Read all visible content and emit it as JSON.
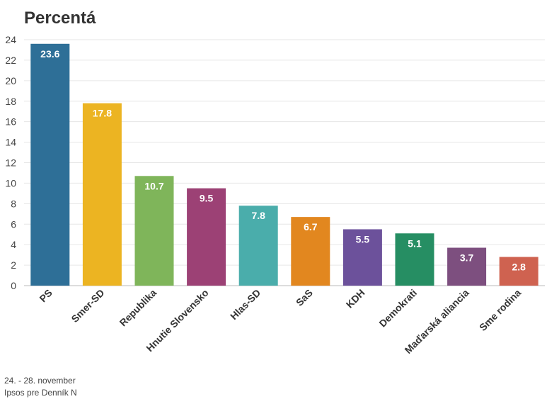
{
  "chart_data": {
    "type": "bar",
    "title": "Percentá",
    "xlabel": "",
    "ylabel": "",
    "ylim": [
      0,
      24
    ],
    "yticks": [
      0,
      2,
      4,
      6,
      8,
      10,
      12,
      14,
      16,
      18,
      20,
      22,
      24
    ],
    "grid": true,
    "categories": [
      "PS",
      "Smer-SD",
      "Republika",
      "Hnutie Slovensko",
      "Hlas-SD",
      "SaS",
      "KDH",
      "Demokrati",
      "Maďarská aliancia",
      "Sme rodina"
    ],
    "values": [
      23.6,
      17.8,
      10.7,
      9.5,
      7.8,
      6.7,
      5.5,
      5.1,
      3.7,
      2.8
    ],
    "colors": [
      "#2e6f97",
      "#ecb422",
      "#7fb55a",
      "#9c4175",
      "#4aadab",
      "#e2871f",
      "#6c519b",
      "#268e63",
      "#7d4f7f",
      "#cf6250"
    ],
    "data_labels": [
      "23.6",
      "17.8",
      "10.7",
      "9.5",
      "7.8",
      "6.7",
      "5.5",
      "5.1",
      "3.7",
      "2.8"
    ]
  },
  "footer": {
    "date": "24. - 28. november",
    "source": "Ipsos pre Denník N"
  }
}
